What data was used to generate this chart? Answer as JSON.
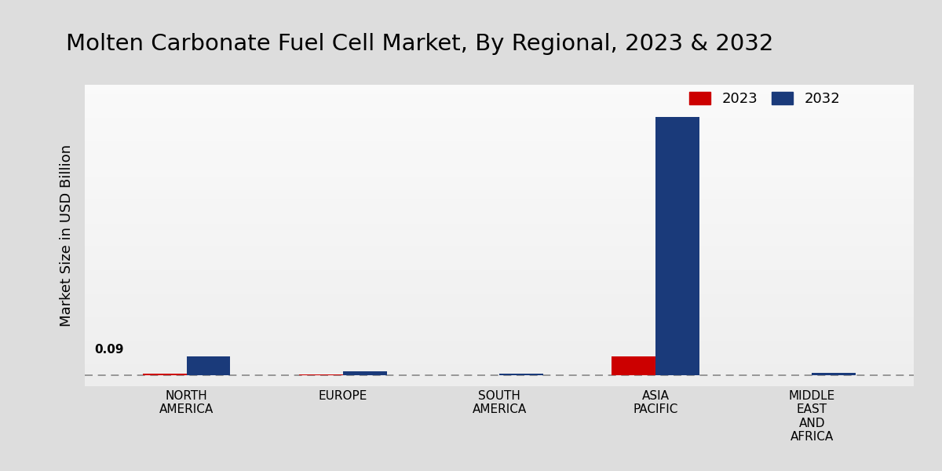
{
  "title": "Molten Carbonate Fuel Cell Market, By Regional, 2023 & 2032",
  "ylabel": "Market Size in USD Billion",
  "categories": [
    "NORTH\nAMERICA",
    "EUROPE",
    "SOUTH\nAMERICA",
    "ASIA\nPACIFIC",
    "MIDDLE\nEAST\nAND\nAFRICA"
  ],
  "values_2023": [
    0.008,
    0.004,
    0.001,
    0.09,
    0.002
  ],
  "values_2032": [
    0.09,
    0.018,
    0.008,
    1.2,
    0.013
  ],
  "color_2023": "#cc0000",
  "color_2032": "#1a3a7a",
  "bar_width": 0.28,
  "annotation_text": "0.09",
  "background_top": "#d8d8d8",
  "background_bottom": "#e8e8e8",
  "dashed_line_y": 0,
  "title_fontsize": 21,
  "legend_fontsize": 13,
  "axis_label_fontsize": 13,
  "tick_fontsize": 11,
  "ylim_max": 1.35,
  "xlim_left": -0.65,
  "xlim_right": 4.65
}
